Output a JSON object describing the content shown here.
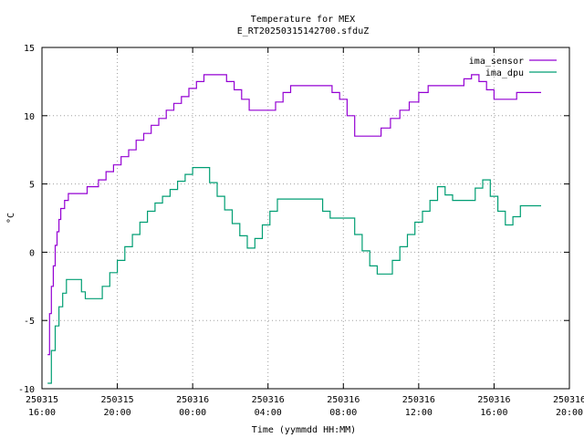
{
  "chart_data": {
    "type": "line",
    "title": "Temperature for MEX",
    "subtitle": "E_RT20250315142700.sfduZ",
    "xlabel": "Time (yymmdd HH:MM)",
    "ylabel": "°C",
    "xlim": [
      "2025-03-15 16:00",
      "2025-03-16 20:00"
    ],
    "ylim": [
      -10,
      15
    ],
    "grid": true,
    "legend_position": "top-right",
    "y_ticks": [
      "-10",
      "-5",
      "0",
      "5",
      "10",
      "15"
    ],
    "x_ticks": [
      {
        "date": "250315",
        "time": "16:00"
      },
      {
        "date": "250315",
        "time": "20:00"
      },
      {
        "date": "250316",
        "time": "00:00"
      },
      {
        "date": "250316",
        "time": "04:00"
      },
      {
        "date": "250316",
        "time": "08:00"
      },
      {
        "date": "250316",
        "time": "12:00"
      },
      {
        "date": "250316",
        "time": "16:00"
      },
      {
        "date": "250316",
        "time": "20:00"
      }
    ],
    "series": [
      {
        "name": "ima_sensor",
        "color": "#9400d3",
        "points": [
          [
            "2025-03-15 16:18",
            -7.5
          ],
          [
            "2025-03-15 16:24",
            -4.5
          ],
          [
            "2025-03-15 16:30",
            -2.5
          ],
          [
            "2025-03-15 16:36",
            -1.0
          ],
          [
            "2025-03-15 16:42",
            0.5
          ],
          [
            "2025-03-15 16:48",
            1.5
          ],
          [
            "2025-03-15 16:54",
            2.4
          ],
          [
            "2025-03-15 17:00",
            3.2
          ],
          [
            "2025-03-15 17:12",
            3.8
          ],
          [
            "2025-03-15 17:24",
            4.3
          ],
          [
            "2025-03-15 18:00",
            4.3
          ],
          [
            "2025-03-15 18:24",
            4.8
          ],
          [
            "2025-03-15 19:00",
            5.3
          ],
          [
            "2025-03-15 19:24",
            5.9
          ],
          [
            "2025-03-15 19:48",
            6.4
          ],
          [
            "2025-03-15 20:12",
            7.0
          ],
          [
            "2025-03-15 20:36",
            7.5
          ],
          [
            "2025-03-15 21:00",
            8.2
          ],
          [
            "2025-03-15 21:24",
            8.7
          ],
          [
            "2025-03-15 21:48",
            9.3
          ],
          [
            "2025-03-15 22:12",
            9.8
          ],
          [
            "2025-03-15 22:36",
            10.4
          ],
          [
            "2025-03-15 23:00",
            10.9
          ],
          [
            "2025-03-15 23:24",
            11.4
          ],
          [
            "2025-03-15 23:48",
            12.0
          ],
          [
            "2025-03-16 00:12",
            12.5
          ],
          [
            "2025-03-16 00:36",
            13.0
          ],
          [
            "2025-03-16 01:30",
            13.0
          ],
          [
            "2025-03-16 01:48",
            12.5
          ],
          [
            "2025-03-16 02:12",
            11.9
          ],
          [
            "2025-03-16 02:36",
            11.2
          ],
          [
            "2025-03-16 03:00",
            10.4
          ],
          [
            "2025-03-16 04:00",
            10.4
          ],
          [
            "2025-03-16 04:24",
            11.0
          ],
          [
            "2025-03-16 04:48",
            11.7
          ],
          [
            "2025-03-16 05:12",
            12.2
          ],
          [
            "2025-03-16 07:00",
            12.2
          ],
          [
            "2025-03-16 07:24",
            11.7
          ],
          [
            "2025-03-16 07:48",
            11.2
          ],
          [
            "2025-03-16 08:12",
            10.0
          ],
          [
            "2025-03-16 08:36",
            8.5
          ],
          [
            "2025-03-16 09:30",
            8.5
          ],
          [
            "2025-03-16 10:00",
            9.1
          ],
          [
            "2025-03-16 10:30",
            9.8
          ],
          [
            "2025-03-16 11:00",
            10.4
          ],
          [
            "2025-03-16 11:30",
            11.0
          ],
          [
            "2025-03-16 12:00",
            11.7
          ],
          [
            "2025-03-16 12:30",
            12.2
          ],
          [
            "2025-03-16 14:00",
            12.2
          ],
          [
            "2025-03-16 14:24",
            12.7
          ],
          [
            "2025-03-16 14:48",
            13.0
          ],
          [
            "2025-03-16 15:12",
            12.5
          ],
          [
            "2025-03-16 15:36",
            11.9
          ],
          [
            "2025-03-16 16:00",
            11.2
          ],
          [
            "2025-03-16 16:48",
            11.2
          ],
          [
            "2025-03-16 17:12",
            11.7
          ],
          [
            "2025-03-16 18:30",
            11.7
          ]
        ]
      },
      {
        "name": "ima_dpu",
        "color": "#009e73",
        "points": [
          [
            "2025-03-15 16:18",
            -9.6
          ],
          [
            "2025-03-15 16:30",
            -7.2
          ],
          [
            "2025-03-15 16:42",
            -5.4
          ],
          [
            "2025-03-15 16:54",
            -4.0
          ],
          [
            "2025-03-15 17:06",
            -3.0
          ],
          [
            "2025-03-15 17:18",
            -2.0
          ],
          [
            "2025-03-15 17:48",
            -2.0
          ],
          [
            "2025-03-15 18:06",
            -2.9
          ],
          [
            "2025-03-15 18:18",
            -3.4
          ],
          [
            "2025-03-15 18:48",
            -3.4
          ],
          [
            "2025-03-15 19:12",
            -2.5
          ],
          [
            "2025-03-15 19:36",
            -1.5
          ],
          [
            "2025-03-15 20:00",
            -0.6
          ],
          [
            "2025-03-15 20:24",
            0.4
          ],
          [
            "2025-03-15 20:48",
            1.3
          ],
          [
            "2025-03-15 21:12",
            2.2
          ],
          [
            "2025-03-15 21:36",
            3.0
          ],
          [
            "2025-03-15 22:00",
            3.6
          ],
          [
            "2025-03-15 22:24",
            4.1
          ],
          [
            "2025-03-15 22:48",
            4.6
          ],
          [
            "2025-03-15 23:12",
            5.2
          ],
          [
            "2025-03-15 23:36",
            5.7
          ],
          [
            "2025-03-15 24:00",
            6.2
          ],
          [
            "2025-03-16 00:30",
            6.2
          ],
          [
            "2025-03-16 00:54",
            5.1
          ],
          [
            "2025-03-16 01:18",
            4.1
          ],
          [
            "2025-03-16 01:42",
            3.1
          ],
          [
            "2025-03-16 02:06",
            2.1
          ],
          [
            "2025-03-16 02:30",
            1.2
          ],
          [
            "2025-03-16 02:54",
            0.3
          ],
          [
            "2025-03-16 03:18",
            1.0
          ],
          [
            "2025-03-16 03:42",
            2.0
          ],
          [
            "2025-03-16 04:06",
            3.0
          ],
          [
            "2025-03-16 04:30",
            3.9
          ],
          [
            "2025-03-16 06:30",
            3.9
          ],
          [
            "2025-03-16 06:54",
            3.0
          ],
          [
            "2025-03-16 07:18",
            2.5
          ],
          [
            "2025-03-16 08:12",
            2.5
          ],
          [
            "2025-03-16 08:36",
            1.3
          ],
          [
            "2025-03-16 09:00",
            0.1
          ],
          [
            "2025-03-16 09:24",
            -1.0
          ],
          [
            "2025-03-16 09:48",
            -1.6
          ],
          [
            "2025-03-16 10:12",
            -1.6
          ],
          [
            "2025-03-16 10:36",
            -0.6
          ],
          [
            "2025-03-16 11:00",
            0.4
          ],
          [
            "2025-03-16 11:24",
            1.3
          ],
          [
            "2025-03-16 11:48",
            2.2
          ],
          [
            "2025-03-16 12:12",
            3.0
          ],
          [
            "2025-03-16 12:36",
            3.8
          ],
          [
            "2025-03-16 13:00",
            4.8
          ],
          [
            "2025-03-16 13:24",
            4.2
          ],
          [
            "2025-03-16 13:48",
            3.8
          ],
          [
            "2025-03-16 14:36",
            3.8
          ],
          [
            "2025-03-16 15:00",
            4.7
          ],
          [
            "2025-03-16 15:24",
            5.3
          ],
          [
            "2025-03-16 15:48",
            4.1
          ],
          [
            "2025-03-16 16:12",
            3.0
          ],
          [
            "2025-03-16 16:36",
            2.0
          ],
          [
            "2025-03-16 17:00",
            2.6
          ],
          [
            "2025-03-16 17:24",
            3.4
          ],
          [
            "2025-03-16 18:30",
            3.4
          ]
        ]
      }
    ]
  }
}
